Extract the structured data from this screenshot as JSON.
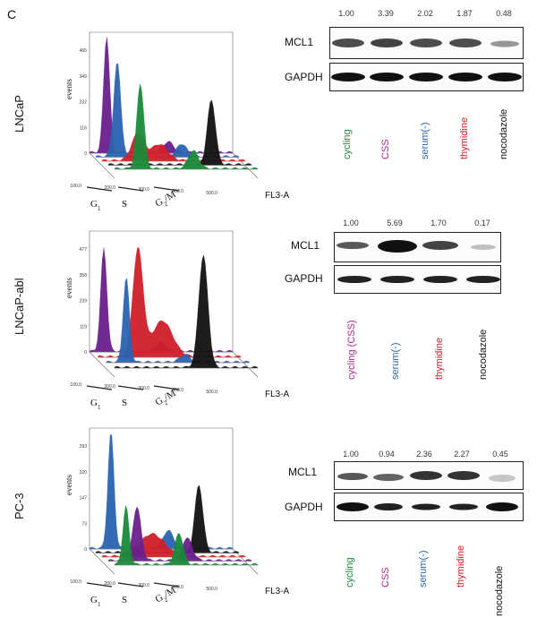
{
  "panel_letter": "C",
  "colors": {
    "green": "#1a8a3a",
    "magenta": "#b0288f",
    "blue": "#2a64b0",
    "red": "#d01f2a",
    "black": "#111111",
    "purple": "#6a1f8c"
  },
  "rows": [
    {
      "cell_line": "LNCaP",
      "flow": {
        "y_label": "events",
        "x_label": "FL3-A",
        "y_ticks": [
          "465",
          "349",
          "232",
          "116",
          "0"
        ],
        "x_ticks": [
          "100.0",
          "200.0",
          "300.0",
          "400.0",
          "500.0"
        ],
        "phases": [
          "G1",
          "S",
          "G2/M"
        ]
      },
      "blot": {
        "values": [
          "1.00",
          "3.39",
          "2.02",
          "1.87",
          "0.48"
        ],
        "targets": [
          "MCL1",
          "GAPDH"
        ],
        "lanes": [
          {
            "label": "cycling",
            "color": "#1a8a3a"
          },
          {
            "label": "CSS",
            "color": "#b0288f"
          },
          {
            "label": "serum(-)",
            "color": "#2a64b0"
          },
          {
            "label": "thymidine",
            "color": "#d01f2a"
          },
          {
            "label": "nocodazole",
            "color": "#111111"
          }
        ]
      }
    },
    {
      "cell_line": "LNCaP-abl",
      "flow": {
        "y_label": "events",
        "x_label": "FL3-A",
        "y_ticks": [
          "477",
          "358",
          "239",
          "119",
          "0"
        ],
        "x_ticks": [
          "100.0",
          "200.0",
          "300.0",
          "400.0",
          "500.0"
        ],
        "phases": [
          "G1",
          "S",
          "G2/M"
        ]
      },
      "blot": {
        "values": [
          "1.00",
          "5.69",
          "1.70",
          "0.17"
        ],
        "targets": [
          "MCL1",
          "GAPDH"
        ],
        "lanes": [
          {
            "label": "cycling (CSS)",
            "color": "#b0288f"
          },
          {
            "label": "serum(-)",
            "color": "#2a64b0"
          },
          {
            "label": "thymidine",
            "color": "#d01f2a"
          },
          {
            "label": "nocodazole",
            "color": "#111111"
          }
        ]
      }
    },
    {
      "cell_line": "PC-3",
      "flow": {
        "y_label": "events",
        "x_label": "FL3-A",
        "y_ticks": [
          "293",
          "220",
          "147",
          "73",
          "0"
        ],
        "x_ticks": [
          "100.0",
          "200.0",
          "300.0",
          "400.0",
          "500.0"
        ],
        "phases": [
          "G1",
          "S",
          "G2/M"
        ]
      },
      "blot": {
        "values": [
          "1.00",
          "0.94",
          "2.36",
          "2.27",
          "0.45"
        ],
        "targets": [
          "MCL1",
          "GAPDH"
        ],
        "lanes": [
          {
            "label": "cycling",
            "color": "#1a8a3a"
          },
          {
            "label": "CSS",
            "color": "#b0288f"
          },
          {
            "label": "serum(-)",
            "color": "#2a64b0"
          },
          {
            "label": "thymidine",
            "color": "#d01f2a"
          },
          {
            "label": "nocodazole",
            "color": "#111111"
          }
        ]
      }
    }
  ]
}
